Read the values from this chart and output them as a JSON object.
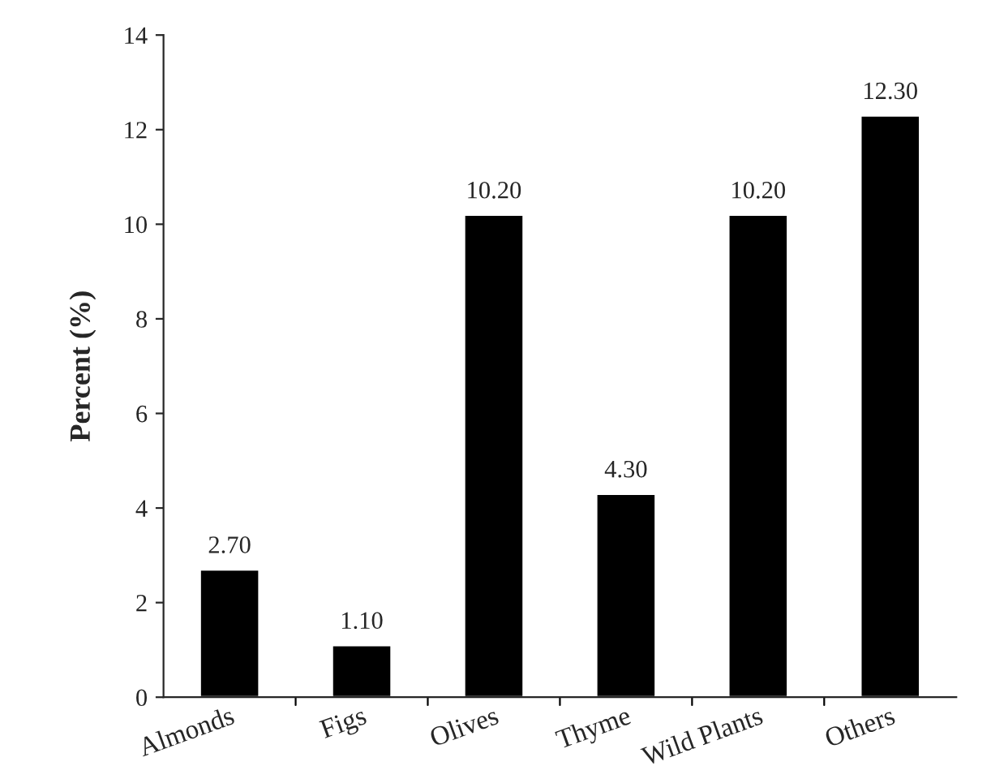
{
  "chart_data": {
    "type": "bar",
    "ylabel": "Percent (%)",
    "categories": [
      "Almonds",
      "Figs",
      "Olives",
      "Thyme",
      "Wild Plants",
      "Others"
    ],
    "values": [
      2.7,
      1.1,
      10.2,
      4.3,
      10.2,
      12.3
    ],
    "value_labels": [
      "2.70",
      "1.10",
      "10.20",
      "4.30",
      "10.20",
      "12.30"
    ],
    "color": "#000000",
    "ylim": [
      0,
      14
    ],
    "yticks": [
      0,
      2,
      4,
      6,
      8,
      10,
      12,
      14
    ],
    "grid": false,
    "legend": false
  }
}
